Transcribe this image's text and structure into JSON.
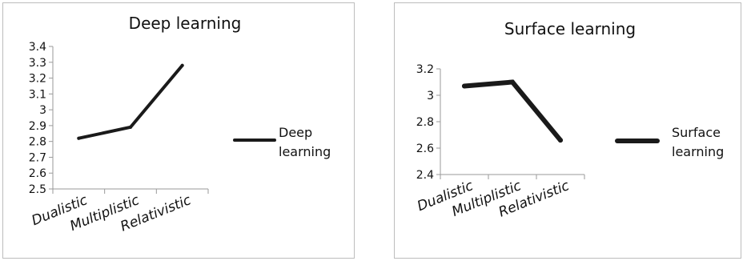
{
  "chart_data": [
    {
      "type": "line",
      "title": "Deep learning",
      "categories": [
        "Dualistic",
        "Multiplistic",
        "Relativistic"
      ],
      "series": [
        {
          "name": "Deep learning",
          "legend_lines": [
            "Deep",
            "learning"
          ],
          "values": [
            2.82,
            2.89,
            3.28
          ]
        }
      ],
      "yticks": [
        "3.4",
        "3.3",
        "3.2",
        "3.1",
        "3",
        "2.9",
        "2.8",
        "2.7",
        "2.6",
        "2.5"
      ],
      "ylim": [
        2.5,
        3.4
      ],
      "grid": false,
      "legend_position": "right",
      "color": "#1a1a1a"
    },
    {
      "type": "line",
      "title": "Surface learning",
      "categories": [
        "Dualistic",
        "Multiplistic",
        "Relativistic"
      ],
      "series": [
        {
          "name": "Surface learning",
          "legend_lines": [
            "Surface",
            "learning"
          ],
          "values": [
            3.07,
            3.1,
            2.66
          ]
        }
      ],
      "yticks": [
        "3.2",
        "3",
        "2.8",
        "2.6",
        "2.4"
      ],
      "ylim": [
        2.4,
        3.2
      ],
      "grid": false,
      "legend_position": "right",
      "color": "#1a1a1a"
    }
  ]
}
